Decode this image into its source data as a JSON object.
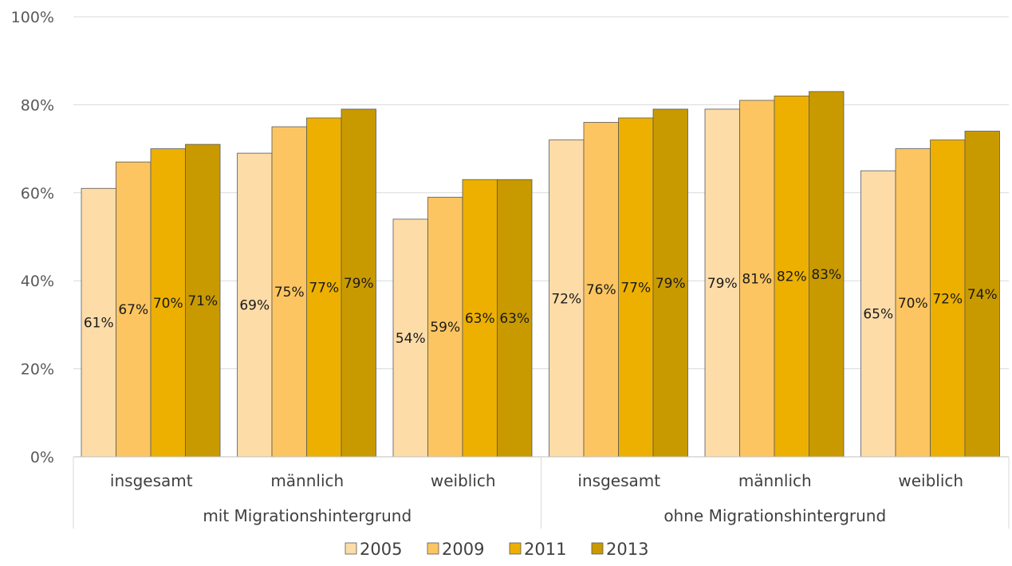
{
  "chart_data": {
    "type": "bar",
    "title": "",
    "xlabel": "",
    "ylabel": "",
    "ylim": [
      0,
      100
    ],
    "y_ticks": [
      "0%",
      "20%",
      "40%",
      "60%",
      "80%",
      "100%"
    ],
    "grid": true,
    "legend_position": "bottom",
    "groups": [
      {
        "label": "mit Migrationshintergrund",
        "categories": [
          "insgesamt",
          "männlich",
          "weiblich"
        ]
      },
      {
        "label": "ohne Migrationshintergrund",
        "categories": [
          "insgesamt",
          "männlich",
          "weiblich"
        ]
      }
    ],
    "series": [
      {
        "name": "2005",
        "color": "#FDDCA8",
        "values": [
          61,
          69,
          54,
          72,
          79,
          65
        ],
        "labels": [
          "61%",
          "69%",
          "54%",
          "72%",
          "79%",
          "65%"
        ]
      },
      {
        "name": "2009",
        "color": "#FCC561",
        "values": [
          67,
          75,
          59,
          76,
          81,
          70
        ],
        "labels": [
          "67%",
          "75%",
          "59%",
          "76%",
          "81%",
          "70%"
        ]
      },
      {
        "name": "2011",
        "color": "#EDB000",
        "values": [
          70,
          77,
          63,
          77,
          82,
          72
        ],
        "labels": [
          "70%",
          "77%",
          "63%",
          "77%",
          "82%",
          "72%"
        ]
      },
      {
        "name": "2013",
        "color": "#C99A00",
        "values": [
          71,
          79,
          63,
          79,
          83,
          74
        ],
        "labels": [
          "71%",
          "79%",
          "63%",
          "79%",
          "83%",
          "74%"
        ]
      }
    ]
  }
}
